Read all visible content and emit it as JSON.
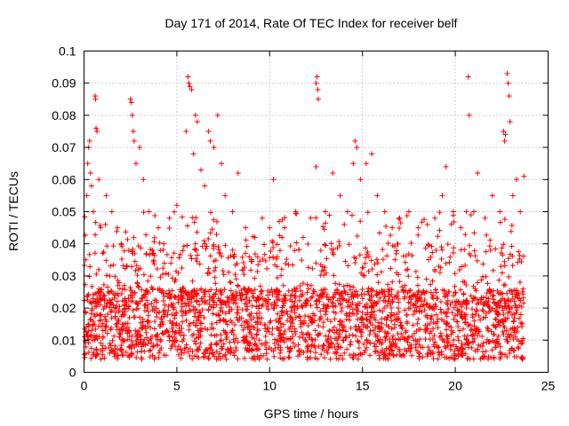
{
  "chart_data": {
    "type": "scatter",
    "title": "Day 171 of 2014, Rate Of TEC Index for receiver belf",
    "xlabel": "GPS time / hours",
    "ylabel": "ROTI / TECUs",
    "xlim": [
      0,
      25
    ],
    "ylim": [
      0,
      0.1
    ],
    "x_ticks": [
      0,
      5,
      10,
      15,
      20,
      25
    ],
    "x_tick_labels": [
      "0",
      "5",
      "10",
      "15",
      "20",
      "25"
    ],
    "y_ticks": [
      0,
      0.01,
      0.02,
      0.03,
      0.04,
      0.05,
      0.06,
      0.07,
      0.08,
      0.09,
      0.1
    ],
    "y_tick_labels": [
      "0",
      "0.01",
      "0.02",
      "0.03",
      "0.04",
      "0.05",
      "0.06",
      "0.07",
      "0.08",
      "0.09",
      "0.1"
    ],
    "grid": true,
    "marker": "+",
    "color": "#ff0000",
    "series": [
      {
        "name": "ROTI",
        "note": "dense scatter of thousands of points from 0 to ~23.7 h; representative points listed",
        "points": [
          [
            0.1,
            0.035
          ],
          [
            0.15,
            0.055
          ],
          [
            0.2,
            0.065
          ],
          [
            0.25,
            0.07
          ],
          [
            0.3,
            0.072
          ],
          [
            0.35,
            0.062
          ],
          [
            0.4,
            0.058
          ],
          [
            0.5,
            0.05
          ],
          [
            0.6,
            0.086
          ],
          [
            0.62,
            0.085
          ],
          [
            0.65,
            0.076
          ],
          [
            0.7,
            0.075
          ],
          [
            0.8,
            0.06
          ],
          [
            0.9,
            0.045
          ],
          [
            1.2,
            0.055
          ],
          [
            1.5,
            0.05
          ],
          [
            1.8,
            0.045
          ],
          [
            2.0,
            0.04
          ],
          [
            2.5,
            0.085
          ],
          [
            2.55,
            0.084
          ],
          [
            2.6,
            0.08
          ],
          [
            2.65,
            0.075
          ],
          [
            2.7,
            0.072
          ],
          [
            2.8,
            0.065
          ],
          [
            3.0,
            0.07
          ],
          [
            3.2,
            0.06
          ],
          [
            3.5,
            0.05
          ],
          [
            4.0,
            0.045
          ],
          [
            4.3,
            0.04
          ],
          [
            4.6,
            0.048
          ],
          [
            5.0,
            0.052
          ],
          [
            5.5,
            0.075
          ],
          [
            5.6,
            0.092
          ],
          [
            5.65,
            0.09
          ],
          [
            5.7,
            0.089
          ],
          [
            5.8,
            0.088
          ],
          [
            5.9,
            0.068
          ],
          [
            6.0,
            0.08
          ],
          [
            6.1,
            0.078
          ],
          [
            6.3,
            0.063
          ],
          [
            6.5,
            0.058
          ],
          [
            6.7,
            0.075
          ],
          [
            6.8,
            0.072
          ],
          [
            7.0,
            0.07
          ],
          [
            7.2,
            0.08
          ],
          [
            7.4,
            0.065
          ],
          [
            7.6,
            0.055
          ],
          [
            8.0,
            0.05
          ],
          [
            8.3,
            0.062
          ],
          [
            8.7,
            0.045
          ],
          [
            9.2,
            0.042
          ],
          [
            9.6,
            0.048
          ],
          [
            10.0,
            0.045
          ],
          [
            10.2,
            0.06
          ],
          [
            10.8,
            0.045
          ],
          [
            11.4,
            0.05
          ],
          [
            11.8,
            0.042
          ],
          [
            12.2,
            0.048
          ],
          [
            12.5,
            0.09
          ],
          [
            12.55,
            0.092
          ],
          [
            12.6,
            0.088
          ],
          [
            12.62,
            0.085
          ],
          [
            12.5,
            0.064
          ],
          [
            13.0,
            0.05
          ],
          [
            13.4,
            0.062
          ],
          [
            13.8,
            0.055
          ],
          [
            14.2,
            0.05
          ],
          [
            14.5,
            0.065
          ],
          [
            14.6,
            0.072
          ],
          [
            14.7,
            0.07
          ],
          [
            14.9,
            0.06
          ],
          [
            15.2,
            0.065
          ],
          [
            15.5,
            0.068
          ],
          [
            15.8,
            0.055
          ],
          [
            16.2,
            0.05
          ],
          [
            16.6,
            0.045
          ],
          [
            17.0,
            0.048
          ],
          [
            17.5,
            0.05
          ],
          [
            18.0,
            0.045
          ],
          [
            18.5,
            0.046
          ],
          [
            18.9,
            0.048
          ],
          [
            19.3,
            0.055
          ],
          [
            19.5,
            0.064
          ],
          [
            19.9,
            0.05
          ],
          [
            20.3,
            0.045
          ],
          [
            20.6,
            0.05
          ],
          [
            20.7,
            0.092
          ],
          [
            20.75,
            0.08
          ],
          [
            21.0,
            0.05
          ],
          [
            21.2,
            0.062
          ],
          [
            21.6,
            0.048
          ],
          [
            22.0,
            0.055
          ],
          [
            22.4,
            0.05
          ],
          [
            22.6,
            0.075
          ],
          [
            22.65,
            0.072
          ],
          [
            22.7,
            0.074
          ],
          [
            22.8,
            0.093
          ],
          [
            22.85,
            0.09
          ],
          [
            22.9,
            0.086
          ],
          [
            22.95,
            0.078
          ],
          [
            23.1,
            0.055
          ],
          [
            23.3,
            0.06
          ],
          [
            23.5,
            0.05
          ],
          [
            23.7,
            0.061
          ]
        ]
      }
    ]
  }
}
